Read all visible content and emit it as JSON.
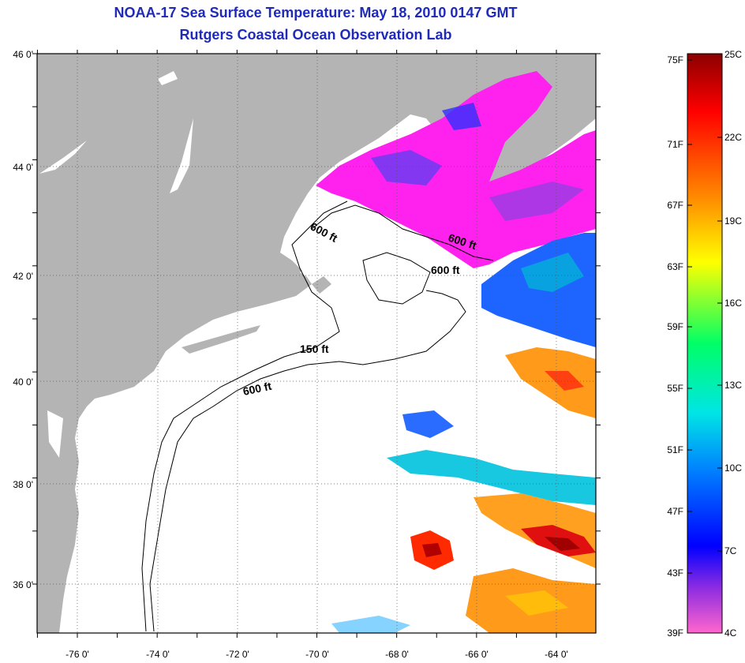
{
  "header": {
    "title": "NOAA-17 Sea Surface Temperature:  May 18, 2010 0147 GMT",
    "subtitle": "Rutgers Coastal Ocean Observation Lab"
  },
  "map": {
    "lat_labels": [
      "46 0'",
      "44 0'",
      "42 0'",
      "40 0'",
      "38 0'",
      "36 0'"
    ],
    "lon_labels": [
      "-76 0'",
      "-74 0'",
      "-72 0'",
      "-70 0'",
      "-68 0'",
      "-66 0'",
      "-64 0'"
    ],
    "contour_labels": [
      {
        "text": "600 ft",
        "id": "contour-label-gulf-west"
      },
      {
        "text": "600 ft",
        "id": "contour-label-gulf-east"
      },
      {
        "text": "600 ft",
        "id": "contour-label-georges"
      },
      {
        "text": "150 ft",
        "id": "contour-label-150"
      },
      {
        "text": "600 ft",
        "id": "contour-label-shelf"
      }
    ],
    "colors": {
      "land": "#b4b4b4",
      "cloud_or_nodata": "#ffffff",
      "contour": "#000000"
    }
  },
  "colorbar": {
    "fahrenheit_labels": [
      "75F",
      "71F",
      "67F",
      "63F",
      "59F",
      "55F",
      "51F",
      "47F",
      "43F",
      "39F"
    ],
    "celsius_labels": [
      "25C",
      "22C",
      "19C",
      "16C",
      "13C",
      "10C",
      "7C",
      "4C"
    ],
    "gradient_stops": [
      "#8b0000",
      "#ff0000",
      "#ff8c00",
      "#ffff00",
      "#00ff66",
      "#00e5e5",
      "#0080ff",
      "#0000ff",
      "#ff00ff",
      "#ff66cc"
    ]
  }
}
